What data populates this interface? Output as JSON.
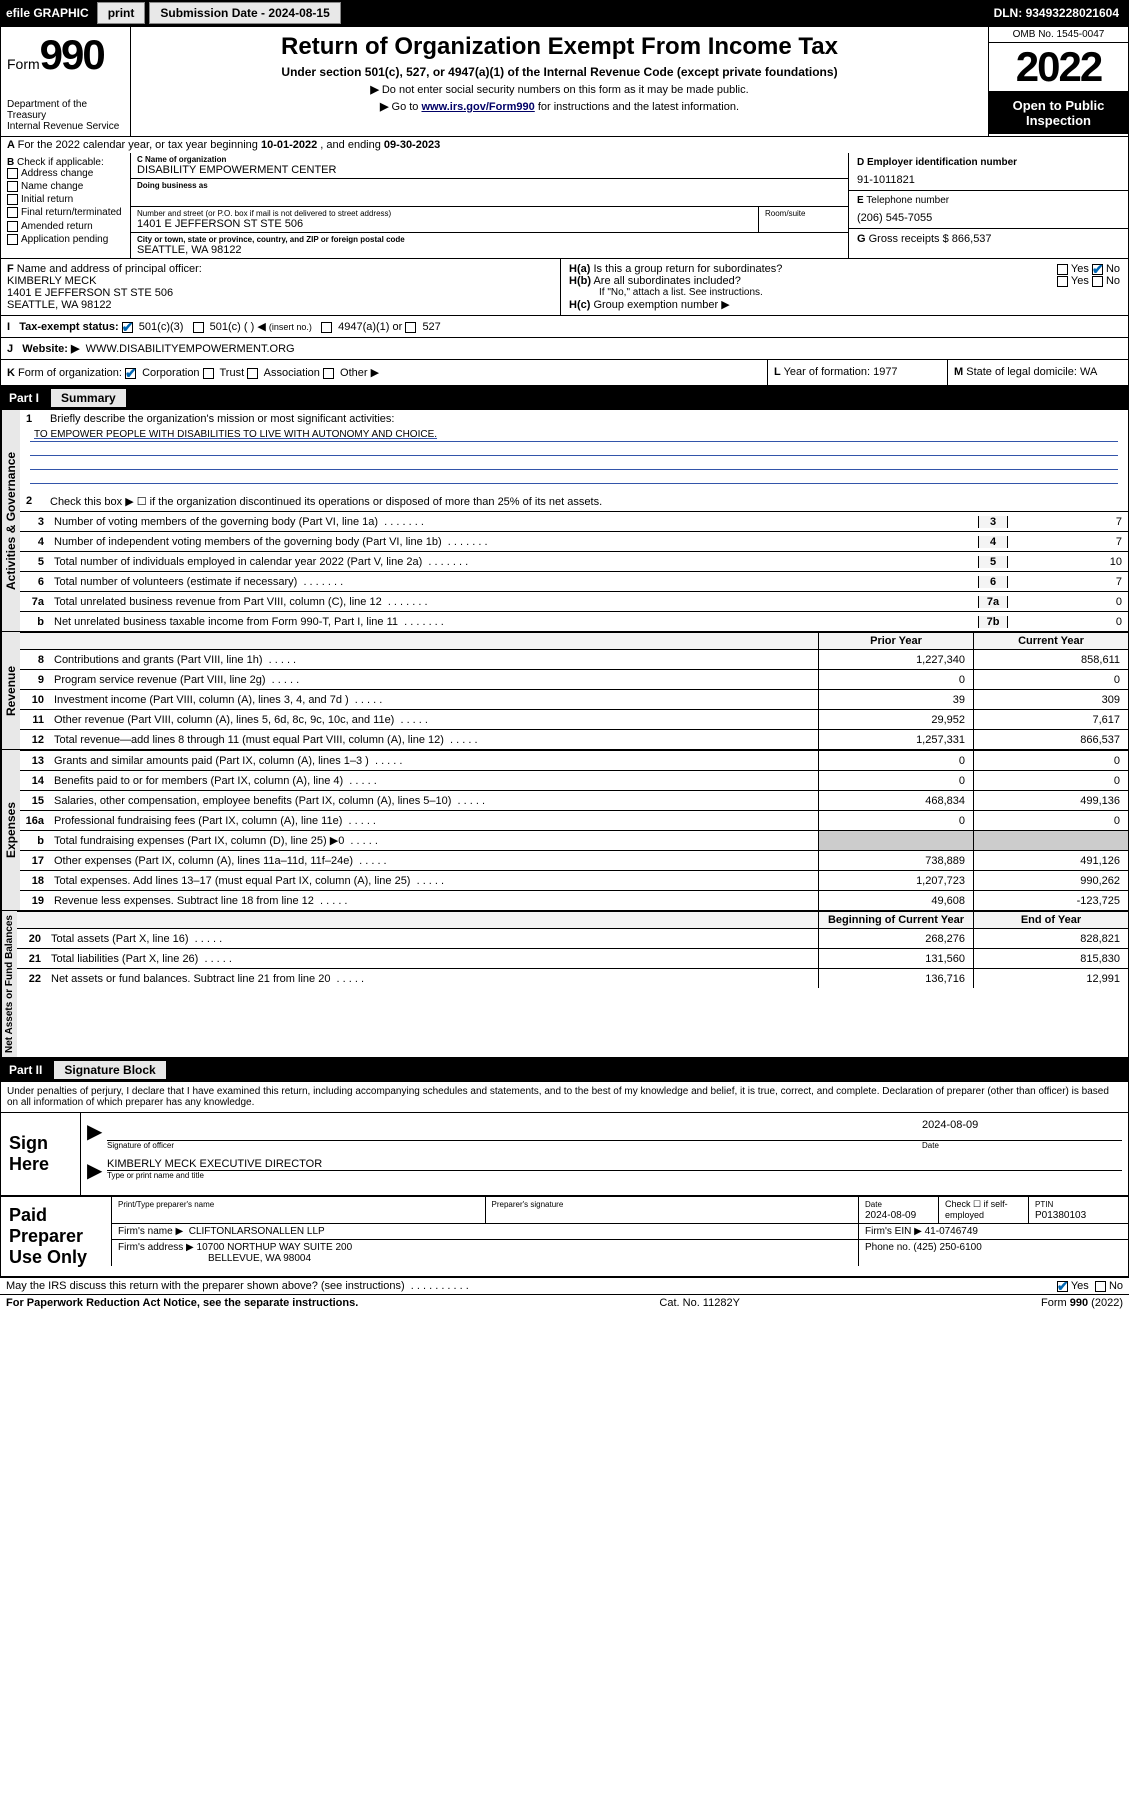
{
  "topbar": {
    "efile": "efile GRAPHIC",
    "print": "print",
    "subdate_label": "Submission Date - ",
    "subdate": "2024-08-15",
    "dln_label": "DLN: ",
    "dln": "93493228021604"
  },
  "header": {
    "form_word": "Form",
    "form_number": "990",
    "dept": "Department of the Treasury",
    "irs": "Internal Revenue Service",
    "title": "Return of Organization Exempt From Income Tax",
    "subtitle": "Under section 501(c), 527, or 4947(a)(1) of the Internal Revenue Code (except private foundations)",
    "note1": "Do not enter social security numbers on this form as it may be made public.",
    "note2_pre": "Go to ",
    "note2_link": "www.irs.gov/Form990",
    "note2_post": " for instructions and the latest information.",
    "omb": "OMB No. 1545-0047",
    "year": "2022",
    "inspect1": "Open to Public",
    "inspect2": "Inspection"
  },
  "lineA": {
    "pre": "For the 2022 calendar year, or tax year beginning ",
    "begin": "10-01-2022",
    "mid": " , and ending ",
    "end": "09-30-2023"
  },
  "boxB": {
    "label": "Check if applicable:",
    "opts": [
      "Address change",
      "Name change",
      "Initial return",
      "Final return/terminated",
      "Amended return",
      "Application pending"
    ]
  },
  "boxC": {
    "name_lbl": "Name of organization",
    "name": "DISABILITY EMPOWERMENT CENTER",
    "dba_lbl": "Doing business as",
    "dba": "",
    "street_lbl": "Number and street (or P.O. box if mail is not delivered to street address)",
    "street": "1401 E JEFFERSON ST STE 506",
    "suite_lbl": "Room/suite",
    "suite": "",
    "city_lbl": "City or town, state or province, country, and ZIP or foreign postal code",
    "city": "SEATTLE, WA  98122"
  },
  "boxD": {
    "lbl": "Employer identification number",
    "val": "91-1011821"
  },
  "boxE": {
    "lbl": "Telephone number",
    "val": "(206) 545-7055"
  },
  "boxG": {
    "lbl": "Gross receipts $",
    "val": "866,537"
  },
  "boxF": {
    "lbl": "Name and address of principal officer:",
    "name": "KIMBERLY MECK",
    "addr1": "1401 E JEFFERSON ST STE 506",
    "addr2": "SEATTLE, WA  98122"
  },
  "boxH": {
    "a": "Is this a group return for subordinates?",
    "b": "Are all subordinates included?",
    "bnote": "If \"No,\" attach a list. See instructions.",
    "c": "Group exemption number",
    "yes": "Yes",
    "no": "No"
  },
  "boxI": {
    "lbl": "Tax-exempt status:",
    "o1": "501(c)(3)",
    "o2": "501(c) (   )",
    "o2note": "(insert no.)",
    "o3": "4947(a)(1) or",
    "o4": "527"
  },
  "boxJ": {
    "lbl": "Website:",
    "val": "WWW.DISABILITYEMPOWERMENT.ORG"
  },
  "boxK": {
    "lbl": "Form of organization:",
    "o1": "Corporation",
    "o2": "Trust",
    "o3": "Association",
    "o4": "Other"
  },
  "boxL": {
    "lbl": "Year of formation:",
    "val": "1977"
  },
  "boxM": {
    "lbl": "State of legal domicile:",
    "val": "WA"
  },
  "part1": {
    "num": "Part I",
    "title": "Summary"
  },
  "summary": {
    "line1": "Briefly describe the organization's mission or most significant activities:",
    "mission": "TO EMPOWER PEOPLE WITH DISABILITIES TO LIVE WITH AUTONOMY AND CHOICE.",
    "line2": "Check this box ▶ ☐  if the organization discontinued its operations or disposed of more than 25% of its net assets.",
    "lines": [
      {
        "n": "3",
        "t": "Number of voting members of the governing body (Part VI, line 1a)",
        "b": "3",
        "v": "7"
      },
      {
        "n": "4",
        "t": "Number of independent voting members of the governing body (Part VI, line 1b)",
        "b": "4",
        "v": "7"
      },
      {
        "n": "5",
        "t": "Total number of individuals employed in calendar year 2022 (Part V, line 2a)",
        "b": "5",
        "v": "10"
      },
      {
        "n": "6",
        "t": "Total number of volunteers (estimate if necessary)",
        "b": "6",
        "v": "7"
      },
      {
        "n": "7a",
        "t": "Total unrelated business revenue from Part VIII, column (C), line 12",
        "b": "7a",
        "v": "0"
      },
      {
        "n": "b",
        "t": "Net unrelated business taxable income from Form 990-T, Part I, line 11",
        "b": "7b",
        "v": "0"
      }
    ]
  },
  "fin_headers": {
    "prior": "Prior Year",
    "curr": "Current Year",
    "begin": "Beginning of Current Year",
    "end": "End of Year"
  },
  "revenue": [
    {
      "n": "8",
      "t": "Contributions and grants (Part VIII, line 1h)",
      "p": "1,227,340",
      "c": "858,611"
    },
    {
      "n": "9",
      "t": "Program service revenue (Part VIII, line 2g)",
      "p": "0",
      "c": "0"
    },
    {
      "n": "10",
      "t": "Investment income (Part VIII, column (A), lines 3, 4, and 7d )",
      "p": "39",
      "c": "309"
    },
    {
      "n": "11",
      "t": "Other revenue (Part VIII, column (A), lines 5, 6d, 8c, 9c, 10c, and 11e)",
      "p": "29,952",
      "c": "7,617"
    },
    {
      "n": "12",
      "t": "Total revenue—add lines 8 through 11 (must equal Part VIII, column (A), line 12)",
      "p": "1,257,331",
      "c": "866,537"
    }
  ],
  "expenses": [
    {
      "n": "13",
      "t": "Grants and similar amounts paid (Part IX, column (A), lines 1–3 )",
      "p": "0",
      "c": "0"
    },
    {
      "n": "14",
      "t": "Benefits paid to or for members (Part IX, column (A), line 4)",
      "p": "0",
      "c": "0"
    },
    {
      "n": "15",
      "t": "Salaries, other compensation, employee benefits (Part IX, column (A), lines 5–10)",
      "p": "468,834",
      "c": "499,136"
    },
    {
      "n": "16a",
      "t": "Professional fundraising fees (Part IX, column (A), line 11e)",
      "p": "0",
      "c": "0"
    },
    {
      "n": "b",
      "t": "Total fundraising expenses (Part IX, column (D), line 25) ▶0",
      "p": "",
      "c": ""
    },
    {
      "n": "17",
      "t": "Other expenses (Part IX, column (A), lines 11a–11d, 11f–24e)",
      "p": "738,889",
      "c": "491,126"
    },
    {
      "n": "18",
      "t": "Total expenses. Add lines 13–17 (must equal Part IX, column (A), line 25)",
      "p": "1,207,723",
      "c": "990,262"
    },
    {
      "n": "19",
      "t": "Revenue less expenses. Subtract line 18 from line 12",
      "p": "49,608",
      "c": "-123,725"
    }
  ],
  "netassets": [
    {
      "n": "20",
      "t": "Total assets (Part X, line 16)",
      "p": "268,276",
      "c": "828,821"
    },
    {
      "n": "21",
      "t": "Total liabilities (Part X, line 26)",
      "p": "131,560",
      "c": "815,830"
    },
    {
      "n": "22",
      "t": "Net assets or fund balances. Subtract line 21 from line 20",
      "p": "136,716",
      "c": "12,991"
    }
  ],
  "vert": {
    "gov": "Activities & Governance",
    "rev": "Revenue",
    "exp": "Expenses",
    "net": "Net Assets or Fund Balances"
  },
  "part2": {
    "num": "Part II",
    "title": "Signature Block"
  },
  "sig": {
    "intro": "Under penalties of perjury, I declare that I have examined this return, including accompanying schedules and statements, and to the best of my knowledge and belief, it is true, correct, and complete. Declaration of preparer (other than officer) is based on all information of which preparer has any knowledge.",
    "here": "Sign Here",
    "sig_lbl": "Signature of officer",
    "date_lbl": "Date",
    "date": "2024-08-09",
    "nametitle": "KIMBERLY MECK  EXECUTIVE DIRECTOR",
    "nametitle_lbl": "Type or print name and title"
  },
  "paid": {
    "label": "Paid Preparer Use Only",
    "name_lbl": "Print/Type preparer's name",
    "sig_lbl": "Preparer's signature",
    "date_lbl": "Date",
    "date": "2024-08-09",
    "check_lbl": "Check ☐ if self-employed",
    "ptin_lbl": "PTIN",
    "ptin": "P01380103",
    "firm_lbl": "Firm's name   ▶",
    "firm": "CLIFTONLARSONALLEN LLP",
    "ein_lbl": "Firm's EIN ▶",
    "ein": "41-0746749",
    "addr_lbl": "Firm's address ▶",
    "addr1": "10700 NORTHUP WAY SUITE 200",
    "addr2": "BELLEVUE, WA  98004",
    "phone_lbl": "Phone no.",
    "phone": "(425) 250-6100"
  },
  "footer": {
    "discuss": "May the IRS discuss this return with the preparer shown above? (see instructions)",
    "yes": "Yes",
    "no": "No",
    "paperwork": "For Paperwork Reduction Act Notice, see the separate instructions.",
    "cat": "Cat. No. 11282Y",
    "formver": "Form 990 (2022)"
  }
}
